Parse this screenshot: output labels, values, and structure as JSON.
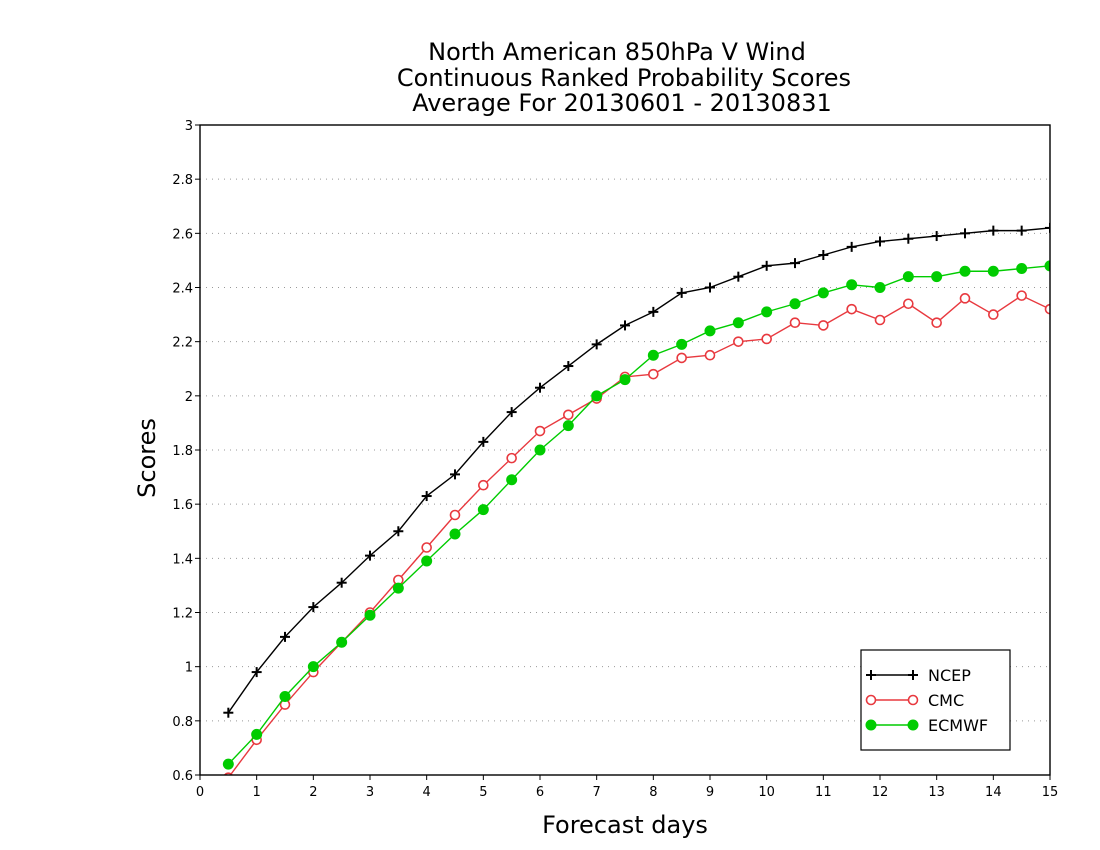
{
  "chart_data": {
    "type": "line",
    "title_lines": [
      "North American 850hPa V Wind",
      "Continuous Ranked Probability Scores",
      "Average For 20130601 - 20130831"
    ],
    "xlabel": "Forecast days",
    "ylabel": "Scores",
    "xlim": [
      0,
      15
    ],
    "ylim": [
      0.6,
      3
    ],
    "x_ticks": [
      "0",
      "1",
      "2",
      "3",
      "4",
      "5",
      "6",
      "7",
      "8",
      "9",
      "10",
      "11",
      "12",
      "13",
      "14",
      "15"
    ],
    "y_ticks": [
      "0.6",
      "0.8",
      "1",
      "1.2",
      "1.4",
      "1.6",
      "1.8",
      "2",
      "2.2",
      "2.4",
      "2.6",
      "2.8",
      "3"
    ],
    "grid": "horizontal-dotted",
    "legend_position": "bottom-right",
    "x": [
      0.5,
      1,
      1.5,
      2,
      2.5,
      3,
      3.5,
      4,
      4.5,
      5,
      5.5,
      6,
      6.5,
      7,
      7.5,
      8,
      8.5,
      9,
      9.5,
      10,
      10.5,
      11,
      11.5,
      12,
      12.5,
      13,
      13.5,
      14,
      14.5,
      15
    ],
    "series": [
      {
        "name": "NCEP",
        "color": "#000000",
        "marker": "plus",
        "values": [
          0.83,
          0.98,
          1.11,
          1.22,
          1.31,
          1.41,
          1.5,
          1.63,
          1.71,
          1.83,
          1.94,
          2.03,
          2.11,
          2.19,
          2.26,
          2.31,
          2.38,
          2.4,
          2.44,
          2.48,
          2.49,
          2.52,
          2.55,
          2.57,
          2.58,
          2.59,
          2.6,
          2.61,
          2.61,
          2.62
        ]
      },
      {
        "name": "CMC",
        "color": "#e8393f",
        "marker": "open-circle",
        "values": [
          0.59,
          0.73,
          0.86,
          0.98,
          1.09,
          1.2,
          1.32,
          1.44,
          1.56,
          1.67,
          1.77,
          1.87,
          1.93,
          1.99,
          2.07,
          2.08,
          2.14,
          2.15,
          2.2,
          2.21,
          2.27,
          2.26,
          2.32,
          2.28,
          2.34,
          2.27,
          2.36,
          2.3,
          2.37,
          2.32
        ]
      },
      {
        "name": "ECMWF",
        "color": "#00cc00",
        "marker": "filled-circle",
        "values": [
          0.64,
          0.75,
          0.89,
          1.0,
          1.09,
          1.19,
          1.29,
          1.39,
          1.49,
          1.58,
          1.69,
          1.8,
          1.89,
          2.0,
          2.06,
          2.15,
          2.19,
          2.24,
          2.27,
          2.31,
          2.34,
          2.38,
          2.41,
          2.4,
          2.44,
          2.44,
          2.46,
          2.46,
          2.47,
          2.48
        ]
      }
    ]
  }
}
